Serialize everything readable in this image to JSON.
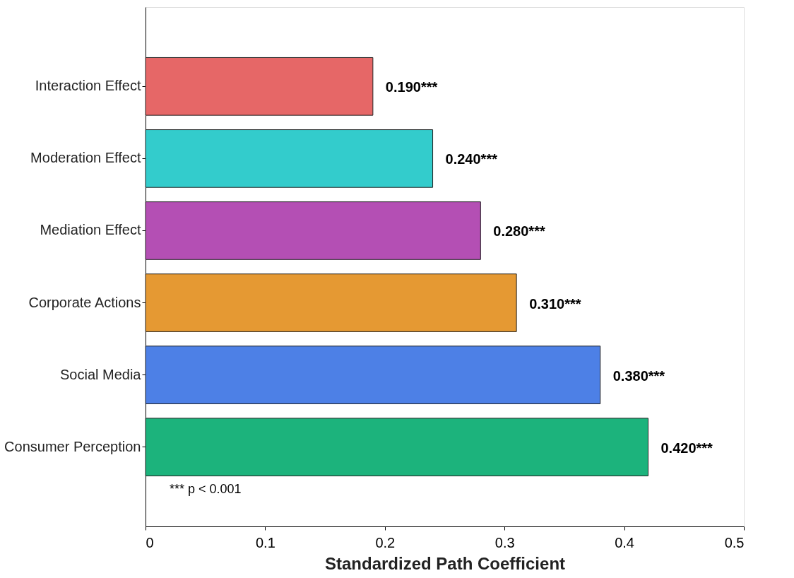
{
  "chart_data": {
    "type": "bar",
    "orientation": "horizontal",
    "xlabel": "Standardized Path Coefficient",
    "categories": [
      "Interaction Effect",
      "Moderation Effect",
      "Mediation Effect",
      "Corporate Actions",
      "Social Media",
      "Consumer Perception"
    ],
    "values": [
      0.19,
      0.24,
      0.28,
      0.31,
      0.38,
      0.42
    ],
    "colors": [
      "#e66767",
      "#33cccc",
      "#b44fb4",
      "#e59933",
      "#4d80e6",
      "#1cb37c"
    ],
    "value_labels": [
      "0.190***",
      "0.240***",
      "0.280***",
      "0.310***",
      "0.380***",
      "0.420***"
    ],
    "xlim": [
      0,
      0.5
    ],
    "xticks": [
      0,
      0.1,
      0.2,
      0.3,
      0.4,
      0.5
    ],
    "annotations": [
      "*** p < 0.001"
    ]
  }
}
